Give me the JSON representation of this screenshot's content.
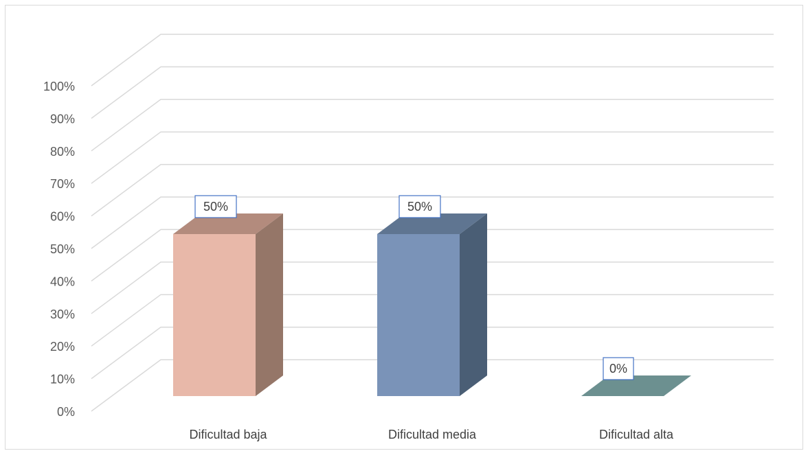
{
  "chart_data": {
    "type": "bar",
    "style": "3d-column",
    "categories": [
      "Dificultad baja",
      "Dificultad media",
      "Dificultad alta"
    ],
    "values": [
      50,
      50,
      0
    ],
    "data_labels": [
      "50%",
      "50%",
      "0%"
    ],
    "y_ticks": [
      "0%",
      "10%",
      "20%",
      "30%",
      "40%",
      "50%",
      "60%",
      "70%",
      "80%",
      "90%",
      "100%"
    ],
    "ylim": [
      0,
      100
    ],
    "grid": true,
    "legend": "none",
    "colors": {
      "bars": [
        {
          "front": "#e8b8a9",
          "side": "#957668",
          "top": "#b38b7d"
        },
        {
          "front": "#7a93b8",
          "side": "#4a5e75",
          "top": "#5f7591"
        },
        {
          "front": "#6c9090",
          "side": "#567676",
          "top": "#6c9090"
        }
      ],
      "grid": "#d9d9d9",
      "label_border": "#4472c4"
    }
  }
}
